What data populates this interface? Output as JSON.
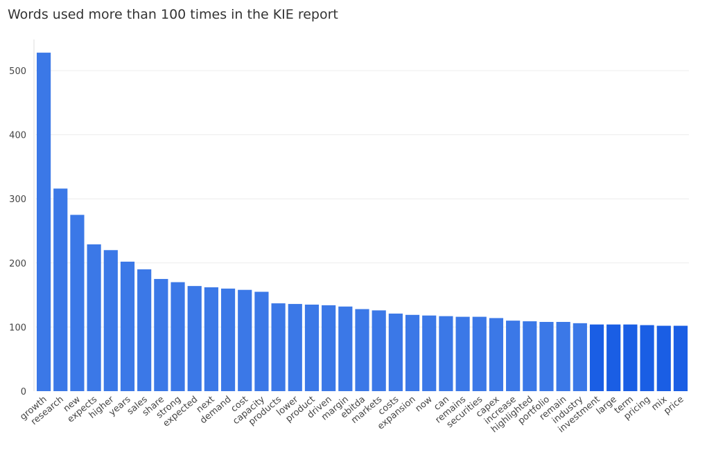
{
  "chart_data": {
    "type": "bar",
    "title": "Words used more than 100 times in the KIE report",
    "xlabel": "",
    "ylabel": "",
    "ylim": [
      0,
      550
    ],
    "yticks": [
      0,
      100,
      200,
      300,
      400,
      500
    ],
    "grid": true,
    "colors": {
      "bar": "#3b78e7",
      "bar_dark": "#1a5ee4"
    },
    "categories": [
      "growth",
      "research",
      "new",
      "expects",
      "higher",
      "years",
      "sales",
      "share",
      "strong",
      "expected",
      "next",
      "demand",
      "cost",
      "capacity",
      "products",
      "lower",
      "product",
      "driven",
      "margin",
      "ebitda",
      "markets",
      "costs",
      "expansion",
      "now",
      "can",
      "remains",
      "securities",
      "capex",
      "increase",
      "highlighted",
      "portfolio",
      "remain",
      "industry",
      "investment",
      "large",
      "term",
      "pricing",
      "mix",
      "price"
    ],
    "values": [
      528,
      316,
      275,
      229,
      220,
      202,
      190,
      175,
      170,
      164,
      162,
      160,
      158,
      155,
      137,
      136,
      135,
      134,
      132,
      128,
      126,
      121,
      119,
      118,
      117,
      116,
      116,
      114,
      110,
      109,
      108,
      108,
      106,
      104,
      104,
      104,
      103,
      102,
      102
    ]
  }
}
